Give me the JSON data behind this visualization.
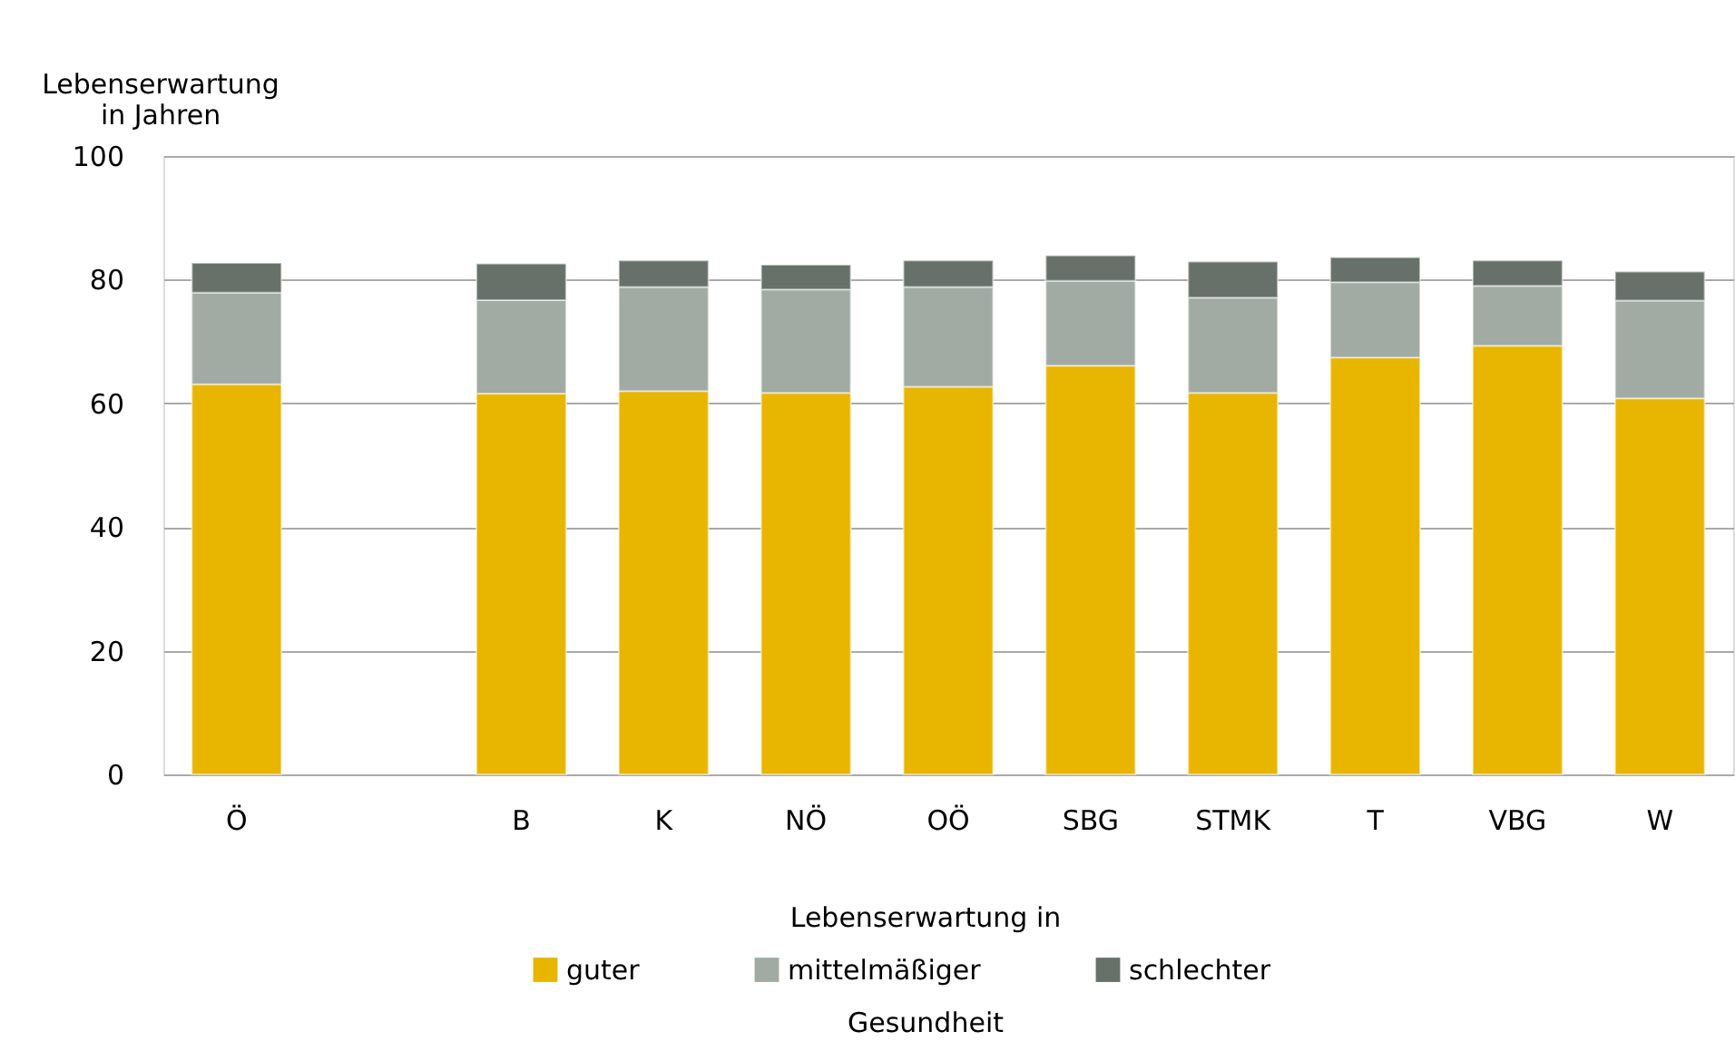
{
  "chart_data": {
    "type": "bar",
    "stacked": true,
    "ylabel": "Lebenserwartung in Jahren",
    "legend_title": "Lebenserwartung in Gesundheit",
    "categories": [
      "Ö",
      null,
      "B",
      "K",
      "NÖ",
      "OÖ",
      "SBG",
      "STMK",
      "T",
      "VBG",
      "W"
    ],
    "series": [
      {
        "name": "guter",
        "color": "#e8b500",
        "values": [
          63.1,
          null,
          61.6,
          62.0,
          61.7,
          62.7,
          66.1,
          61.7,
          67.4,
          69.3,
          60.8
        ]
      },
      {
        "name": "mittelmäßiger",
        "color": "#a2aaa4",
        "values": [
          14.8,
          null,
          15.1,
          16.8,
          16.7,
          16.1,
          13.7,
          15.4,
          12.2,
          9.7,
          15.8
        ]
      },
      {
        "name": "schlechter",
        "color": "#67716a",
        "values": [
          4.8,
          null,
          5.9,
          4.3,
          4.0,
          4.3,
          4.1,
          5.8,
          4.0,
          4.1,
          4.7
        ]
      }
    ],
    "ylim": [
      0,
      100
    ],
    "yticks": [
      0,
      20,
      40,
      60,
      80,
      100
    ],
    "grid": "y",
    "legend": "bottom"
  }
}
